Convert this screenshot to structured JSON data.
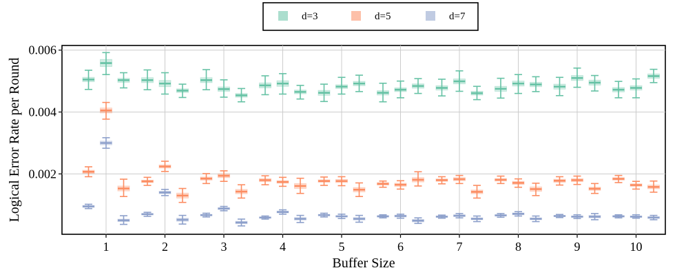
{
  "chart_data": {
    "type": "box",
    "title": "",
    "xlabel": "Buffer Size",
    "ylabel": "Logical Error Rate per Round",
    "categories": [
      "1",
      "2",
      "3",
      "4",
      "5",
      "6",
      "7",
      "8",
      "9",
      "10"
    ],
    "ylim": [
      5e-05,
      0.00615
    ],
    "yticks": [
      0.002,
      0.004,
      0.006
    ],
    "ytick_labels": [
      "0.002",
      "0.004",
      "0.006"
    ],
    "grid": true,
    "legend": {
      "position": "top-center",
      "frame": true
    },
    "offsets": [
      -0.25,
      0.0,
      0.25
    ],
    "series": [
      {
        "name": "d=3",
        "color": "#66c2a5",
        "boxes": [
          [
            [
              0.00473,
              0.00498,
              0.00505,
              0.00512,
              0.00535
            ],
            [
              0.00521,
              0.00547,
              0.00558,
              0.0057,
              0.00592
            ],
            [
              0.00478,
              0.00496,
              0.00503,
              0.00509,
              0.00527
            ]
          ],
          [
            [
              0.00472,
              0.00495,
              0.00503,
              0.00511,
              0.00536
            ],
            [
              0.00458,
              0.00482,
              0.00492,
              0.00502,
              0.00527
            ],
            [
              0.00447,
              0.00463,
              0.00469,
              0.00475,
              0.0049
            ]
          ],
          [
            [
              0.00472,
              0.00495,
              0.00503,
              0.00511,
              0.00537
            ],
            [
              0.00448,
              0.00467,
              0.00474,
              0.00481,
              0.00504
            ],
            [
              0.00433,
              0.00448,
              0.00454,
              0.0046,
              0.00476
            ]
          ],
          [
            [
              0.00456,
              0.00478,
              0.00486,
              0.00494,
              0.00517
            ],
            [
              0.00458,
              0.00483,
              0.00492,
              0.00501,
              0.00524
            ],
            [
              0.00442,
              0.00459,
              0.00465,
              0.00471,
              0.00486
            ]
          ],
          [
            [
              0.00434,
              0.00454,
              0.00462,
              0.0047,
              0.0049
            ],
            [
              0.00458,
              0.00476,
              0.00482,
              0.00488,
              0.00512
            ],
            [
              0.00466,
              0.00485,
              0.00492,
              0.00499,
              0.00519
            ]
          ],
          [
            [
              0.00433,
              0.00455,
              0.00462,
              0.00469,
              0.00493
            ],
            [
              0.00446,
              0.00466,
              0.00472,
              0.00478,
              0.005
            ],
            [
              0.0046,
              0.00477,
              0.00484,
              0.00491,
              0.00508
            ]
          ],
          [
            [
              0.00452,
              0.00471,
              0.00478,
              0.00485,
              0.00506
            ],
            [
              0.00467,
              0.00491,
              0.00499,
              0.00507,
              0.00533
            ],
            [
              0.0044,
              0.00455,
              0.00461,
              0.00467,
              0.00483
            ]
          ],
          [
            [
              0.00445,
              0.00467,
              0.00475,
              0.00483,
              0.00509
            ],
            [
              0.0046,
              0.00484,
              0.00492,
              0.005,
              0.00521
            ],
            [
              0.00466,
              0.00482,
              0.00489,
              0.00496,
              0.00514
            ]
          ],
          [
            [
              0.00453,
              0.00474,
              0.00482,
              0.0049,
              0.00512
            ],
            [
              0.0048,
              0.00502,
              0.0051,
              0.00518,
              0.00542
            ],
            [
              0.00468,
              0.00487,
              0.00495,
              0.00503,
              0.00518
            ]
          ],
          [
            [
              0.00446,
              0.00465,
              0.00472,
              0.00479,
              0.00499
            ],
            [
              0.00446,
              0.00471,
              0.00478,
              0.00485,
              0.00507
            ],
            [
              0.00495,
              0.00509,
              0.00516,
              0.00523,
              0.00538
            ]
          ]
        ]
      },
      {
        "name": "d=5",
        "color": "#fc8d62",
        "boxes": [
          [
            [
              0.00191,
              0.00202,
              0.00207,
              0.00212,
              0.00223
            ],
            [
              0.00377,
              0.00397,
              0.00405,
              0.00413,
              0.00431
            ],
            [
              0.00127,
              0.00145,
              0.00153,
              0.00161,
              0.00183
            ]
          ],
          [
            [
              0.00163,
              0.00172,
              0.00176,
              0.0018,
              0.00189
            ],
            [
              0.00208,
              0.00219,
              0.00224,
              0.00229,
              0.00241
            ],
            [
              0.00108,
              0.00122,
              0.0013,
              0.00138,
              0.00153
            ]
          ],
          [
            [
              0.00169,
              0.0018,
              0.00185,
              0.0019,
              0.00201
            ],
            [
              0.00176,
              0.00188,
              0.00194,
              0.002,
              0.0021
            ],
            [
              0.00122,
              0.00136,
              0.00143,
              0.0015,
              0.00165
            ]
          ],
          [
            [
              0.00165,
              0.00175,
              0.0018,
              0.00185,
              0.00194
            ],
            [
              0.0016,
              0.0017,
              0.00174,
              0.00178,
              0.00189
            ],
            [
              0.00137,
              0.00153,
              0.00161,
              0.00169,
              0.00186
            ]
          ],
          [
            [
              0.00163,
              0.00173,
              0.00177,
              0.00181,
              0.0019
            ],
            [
              0.00162,
              0.00172,
              0.00177,
              0.00182,
              0.00191
            ],
            [
              0.00127,
              0.00142,
              0.00149,
              0.00156,
              0.00171
            ]
          ],
          [
            [
              0.00157,
              0.00164,
              0.00168,
              0.00172,
              0.00177
            ],
            [
              0.00151,
              0.0016,
              0.00165,
              0.0017,
              0.00178
            ],
            [
              0.00161,
              0.00174,
              0.00181,
              0.00188,
              0.00207
            ]
          ],
          [
            [
              0.00168,
              0.00176,
              0.0018,
              0.00184,
              0.00191
            ],
            [
              0.00169,
              0.00178,
              0.00183,
              0.00188,
              0.00195
            ],
            [
              0.00122,
              0.00136,
              0.00142,
              0.00148,
              0.00163
            ]
          ],
          [
            [
              0.00169,
              0.00177,
              0.00181,
              0.00185,
              0.00193
            ],
            [
              0.00157,
              0.00166,
              0.00171,
              0.00176,
              0.00184
            ],
            [
              0.0013,
              0.00144,
              0.00151,
              0.00158,
              0.0017
            ]
          ],
          [
            [
              0.00164,
              0.00173,
              0.00178,
              0.00183,
              0.00191
            ],
            [
              0.00166,
              0.00175,
              0.0018,
              0.00185,
              0.00193
            ],
            [
              0.00137,
              0.00147,
              0.00152,
              0.00157,
              0.00169
            ]
          ],
          [
            [
              0.00172,
              0.0018,
              0.00184,
              0.00188,
              0.00195
            ],
            [
              0.00151,
              0.0016,
              0.00164,
              0.00168,
              0.00176
            ],
            [
              0.00141,
              0.00152,
              0.00158,
              0.00164,
              0.00177
            ]
          ]
        ]
      },
      {
        "name": "d=7",
        "color": "#8da0cb",
        "boxes": [
          [
            [
              0.00088,
              0.00092,
              0.00095,
              0.00098,
              0.00102
            ],
            [
              0.00283,
              0.00294,
              0.003,
              0.00306,
              0.00317
            ],
            [
              0.00037,
              0.00046,
              0.0005,
              0.00054,
              0.00065
            ]
          ],
          [
            [
              0.00063,
              0.00068,
              0.0007,
              0.00072,
              0.00076
            ],
            [
              0.0013,
              0.00136,
              0.0014,
              0.00144,
              0.0015
            ],
            [
              0.00038,
              0.00047,
              0.00052,
              0.00057,
              0.00066
            ]
          ],
          [
            [
              0.00061,
              0.00065,
              0.00067,
              0.00069,
              0.00073
            ],
            [
              0.00081,
              0.00085,
              0.00088,
              0.00091,
              0.00095
            ],
            [
              0.00032,
              0.00039,
              0.00043,
              0.00047,
              0.00054
            ]
          ],
          [
            [
              0.00054,
              0.00057,
              0.00059,
              0.00061,
              0.00064
            ],
            [
              0.0007,
              0.00074,
              0.00077,
              0.0008,
              0.00084
            ],
            [
              0.00043,
              0.00051,
              0.00055,
              0.00059,
              0.00066
            ]
          ],
          [
            [
              0.00061,
              0.00065,
              0.00067,
              0.00069,
              0.00073
            ],
            [
              0.00056,
              0.00061,
              0.00063,
              0.00065,
              0.0007
            ],
            [
              0.00044,
              0.00051,
              0.00055,
              0.00059,
              0.00066
            ]
          ],
          [
            [
              0.00058,
              0.00061,
              0.00063,
              0.00065,
              0.00068
            ],
            [
              0.00057,
              0.00061,
              0.00064,
              0.00067,
              0.0007
            ],
            [
              0.0004,
              0.00045,
              0.00049,
              0.00053,
              0.00058
            ]
          ],
          [
            [
              0.00057,
              0.0006,
              0.00062,
              0.00064,
              0.00067
            ],
            [
              0.00058,
              0.00062,
              0.00065,
              0.00068,
              0.00072
            ],
            [
              0.00046,
              0.00052,
              0.00055,
              0.00058,
              0.00064
            ]
          ],
          [
            [
              0.0006,
              0.00064,
              0.00066,
              0.00068,
              0.00072
            ],
            [
              0.00064,
              0.00068,
              0.00071,
              0.00074,
              0.00078
            ],
            [
              0.00046,
              0.00052,
              0.00055,
              0.00058,
              0.00064
            ]
          ],
          [
            [
              0.00059,
              0.00062,
              0.00064,
              0.00066,
              0.00069
            ],
            [
              0.00056,
              0.0006,
              0.00062,
              0.00064,
              0.00068
            ],
            [
              0.00052,
              0.00058,
              0.00062,
              0.00066,
              0.00072
            ]
          ],
          [
            [
              0.00058,
              0.00061,
              0.00063,
              0.00065,
              0.00068
            ],
            [
              0.00057,
              0.0006,
              0.00062,
              0.00064,
              0.00068
            ],
            [
              0.00052,
              0.00056,
              0.00059,
              0.00062,
              0.00066
            ]
          ]
        ]
      }
    ]
  }
}
